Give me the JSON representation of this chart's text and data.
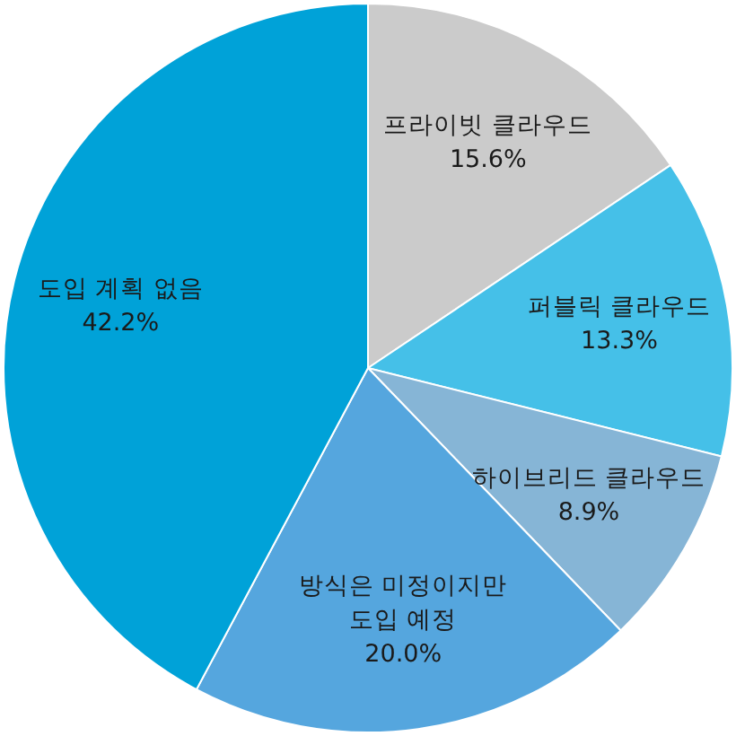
{
  "chart_data": {
    "type": "pie",
    "categories": [
      "프라이빗 클라우드",
      "퍼블릭 클라우드",
      "하이브리드 클라우드",
      "방식은 미정이지만 도입 예정",
      "도입 계획 없음"
    ],
    "values": [
      15.6,
      13.3,
      8.9,
      20.0,
      42.2
    ],
    "value_labels": [
      "15.6%",
      "13.3%",
      "8.9%",
      "20.0%",
      "42.2%"
    ],
    "colors": [
      "#cbcbcb",
      "#45c0e8",
      "#86b5d6",
      "#55a6de",
      "#00a2d8"
    ]
  }
}
